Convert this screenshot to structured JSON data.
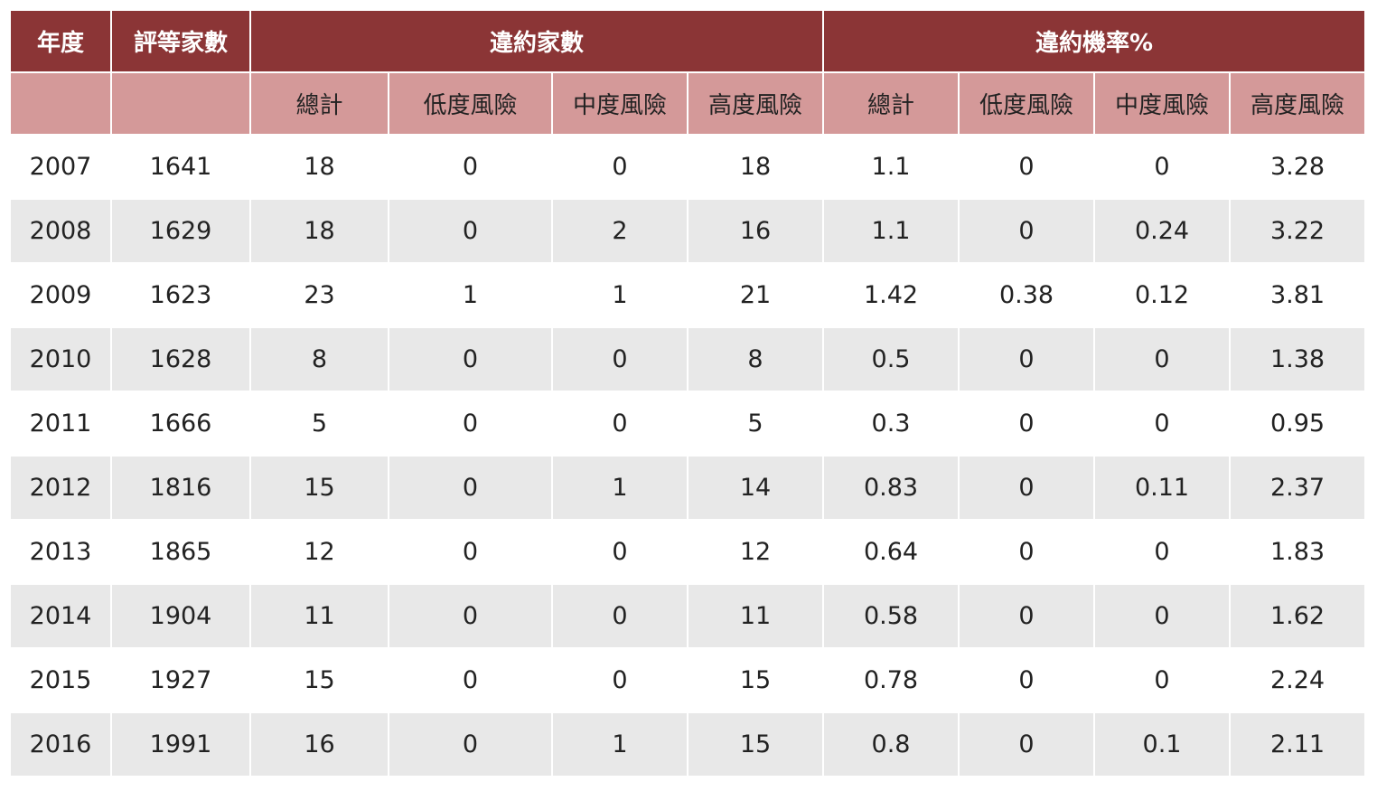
{
  "chart_data": {
    "type": "table",
    "header_top": {
      "year": "年度",
      "rated_count": "評等家數",
      "default_count_group": "違約家數",
      "default_rate_group": "違約機率%"
    },
    "header_sub": [
      "總計",
      "低度風險",
      "中度風險",
      "高度風險",
      "總計",
      "低度風險",
      "中度風險",
      "高度風險"
    ],
    "rows": [
      [
        "2007",
        "1641",
        "18",
        "0",
        "0",
        "18",
        "1.1",
        "0",
        "0",
        "3.28"
      ],
      [
        "2008",
        "1629",
        "18",
        "0",
        "2",
        "16",
        "1.1",
        "0",
        "0.24",
        "3.22"
      ],
      [
        "2009",
        "1623",
        "23",
        "1",
        "1",
        "21",
        "1.42",
        "0.38",
        "0.12",
        "3.81"
      ],
      [
        "2010",
        "1628",
        "8",
        "0",
        "0",
        "8",
        "0.5",
        "0",
        "0",
        "1.38"
      ],
      [
        "2011",
        "1666",
        "5",
        "0",
        "0",
        "5",
        "0.3",
        "0",
        "0",
        "0.95"
      ],
      [
        "2012",
        "1816",
        "15",
        "0",
        "1",
        "14",
        "0.83",
        "0",
        "0.11",
        "2.37"
      ],
      [
        "2013",
        "1865",
        "12",
        "0",
        "0",
        "12",
        "0.64",
        "0",
        "0",
        "1.83"
      ],
      [
        "2014",
        "1904",
        "11",
        "0",
        "0",
        "11",
        "0.58",
        "0",
        "0",
        "1.62"
      ],
      [
        "2015",
        "1927",
        "15",
        "0",
        "0",
        "15",
        "0.78",
        "0",
        "0",
        "2.24"
      ],
      [
        "2016",
        "1991",
        "16",
        "0",
        "1",
        "15",
        "0.8",
        "0",
        "0.1",
        "2.11"
      ]
    ]
  },
  "colors": {
    "header_dark": "#8b3536",
    "header_light": "#d49999",
    "row_alt": "#e8e8e8",
    "row_plain": "#ffffff"
  }
}
